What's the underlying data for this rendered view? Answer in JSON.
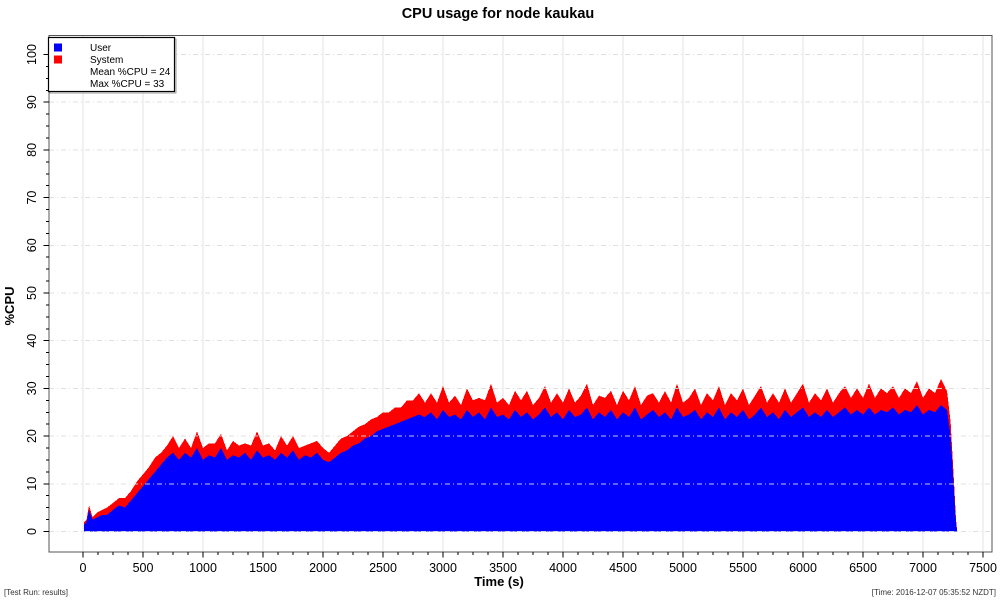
{
  "page": {
    "footer_left": "[Test Run: results]",
    "footer_right": "[Time: 2016-12-07 05:35:52 NZDT]"
  },
  "chart_data": {
    "type": "area",
    "stacked": true,
    "title": "CPU usage for node kaukau",
    "xlabel": "Time (s)",
    "ylabel": "%CPU",
    "xlim": [
      0,
      7500
    ],
    "ylim": [
      0,
      100
    ],
    "x_tick_labels": [
      "0",
      "500",
      "1000",
      "1500",
      "2000",
      "2500",
      "3000",
      "3500",
      "4000",
      "4500",
      "5000",
      "5500",
      "6000",
      "6500",
      "7000",
      "7500"
    ],
    "y_tick_labels": [
      "0",
      "10",
      "20",
      "30",
      "40",
      "50",
      "60",
      "70",
      "80",
      "90",
      "100"
    ],
    "x_minor_step": 125,
    "y_minor_step": 2.5,
    "grid": {
      "vertical_style": "solid",
      "horizontal_style": "dashdot",
      "color": "#dcdcdc",
      "legend_position": "top-left"
    },
    "legend": {
      "user_label": "User",
      "system_label": "System",
      "mean_label": "Mean %CPU = 24",
      "max_label": "Max %CPU = 33"
    },
    "mean_cpu": 24,
    "max_cpu": 33,
    "series": [
      {
        "name": "User",
        "color": "#0000ff"
      },
      {
        "name": "System",
        "color": "#ff0000"
      }
    ],
    "samples_t_user_system": [
      [
        10,
        1.5,
        0.5
      ],
      [
        30,
        2,
        0.5
      ],
      [
        50,
        4.5,
        1
      ],
      [
        80,
        2.5,
        0.5
      ],
      [
        120,
        3,
        1
      ],
      [
        160,
        3.5,
        1
      ],
      [
        200,
        3.5,
        1.5
      ],
      [
        250,
        4.5,
        1.5
      ],
      [
        300,
        5.5,
        1.5
      ],
      [
        350,
        5,
        2
      ],
      [
        400,
        6.5,
        2
      ],
      [
        450,
        8,
        2.5
      ],
      [
        500,
        9.5,
        2.5
      ],
      [
        550,
        11,
        2.5
      ],
      [
        600,
        12.5,
        3
      ],
      [
        650,
        14,
        2.5
      ],
      [
        700,
        15.5,
        2.5
      ],
      [
        750,
        16.5,
        3.5
      ],
      [
        800,
        15,
        2.5
      ],
      [
        850,
        16.5,
        3
      ],
      [
        900,
        15.5,
        2
      ],
      [
        950,
        17.5,
        3.5
      ],
      [
        1000,
        15,
        2.5
      ],
      [
        1050,
        16,
        2.5
      ],
      [
        1100,
        15.5,
        3
      ],
      [
        1150,
        17.5,
        3
      ],
      [
        1200,
        15,
        2
      ],
      [
        1250,
        16,
        3
      ],
      [
        1300,
        15.5,
        2.5
      ],
      [
        1350,
        16.5,
        2
      ],
      [
        1400,
        15,
        3
      ],
      [
        1450,
        17,
        4
      ],
      [
        1500,
        15.5,
        2.5
      ],
      [
        1550,
        16,
        2.5
      ],
      [
        1600,
        15,
        2
      ],
      [
        1650,
        16.5,
        3.5
      ],
      [
        1700,
        15.5,
        2.5
      ],
      [
        1750,
        17,
        3
      ],
      [
        1800,
        15,
        2.5
      ],
      [
        1850,
        16,
        2
      ],
      [
        1900,
        15.5,
        3
      ],
      [
        1950,
        16.5,
        2.5
      ],
      [
        2000,
        15,
        2.5
      ],
      [
        2050,
        14.5,
        2
      ],
      [
        2100,
        15.5,
        2.5
      ],
      [
        2150,
        16.5,
        3
      ],
      [
        2200,
        17,
        3
      ],
      [
        2250,
        18,
        3
      ],
      [
        2300,
        18.5,
        3.5
      ],
      [
        2350,
        19.5,
        3
      ],
      [
        2400,
        20,
        3.5
      ],
      [
        2450,
        21,
        3
      ],
      [
        2500,
        21.5,
        3.5
      ],
      [
        2550,
        22,
        3
      ],
      [
        2600,
        22.5,
        3.5
      ],
      [
        2650,
        23,
        3
      ],
      [
        2700,
        23.5,
        4
      ],
      [
        2750,
        24,
        3.5
      ],
      [
        2800,
        24.5,
        4.5
      ],
      [
        2850,
        24,
        3
      ],
      [
        2900,
        25,
        4
      ],
      [
        2950,
        23.5,
        3.5
      ],
      [
        3000,
        25.5,
        5
      ],
      [
        3050,
        24,
        3
      ],
      [
        3100,
        24.5,
        4
      ],
      [
        3150,
        23.5,
        3
      ],
      [
        3200,
        25.5,
        4.5
      ],
      [
        3250,
        24,
        3.5
      ],
      [
        3300,
        25,
        3
      ],
      [
        3350,
        23.5,
        4
      ],
      [
        3400,
        26,
        5
      ],
      [
        3450,
        24,
        3
      ],
      [
        3500,
        24.5,
        3.5
      ],
      [
        3550,
        23.5,
        3
      ],
      [
        3600,
        25.5,
        4
      ],
      [
        3650,
        24,
        3.5
      ],
      [
        3700,
        25,
        4.5
      ],
      [
        3750,
        23.5,
        3
      ],
      [
        3800,
        24.5,
        3.5
      ],
      [
        3850,
        26,
        4.5
      ],
      [
        3900,
        24,
        3
      ],
      [
        3950,
        25,
        4
      ],
      [
        4000,
        23.5,
        3.5
      ],
      [
        4050,
        25.5,
        4.5
      ],
      [
        4100,
        24,
        3
      ],
      [
        4150,
        24.5,
        4
      ],
      [
        4200,
        26,
        5
      ],
      [
        4250,
        23.5,
        3
      ],
      [
        4300,
        25,
        3.5
      ],
      [
        4350,
        24,
        4
      ],
      [
        4400,
        25.5,
        4
      ],
      [
        4450,
        23.5,
        3
      ],
      [
        4500,
        25,
        4.5
      ],
      [
        4550,
        24,
        3.5
      ],
      [
        4600,
        26,
        4.5
      ],
      [
        4650,
        23.5,
        3
      ],
      [
        4700,
        24.5,
        4
      ],
      [
        4750,
        25.5,
        3.5
      ],
      [
        4800,
        24,
        3
      ],
      [
        4850,
        25,
        4.5
      ],
      [
        4900,
        23.5,
        3.5
      ],
      [
        4950,
        26,
        5
      ],
      [
        5000,
        24,
        3
      ],
      [
        5050,
        24.5,
        3.5
      ],
      [
        5100,
        25.5,
        4.5
      ],
      [
        5150,
        23.5,
        3
      ],
      [
        5200,
        25,
        4
      ],
      [
        5250,
        24,
        3.5
      ],
      [
        5300,
        26,
        4.5
      ],
      [
        5350,
        23.5,
        3
      ],
      [
        5400,
        25,
        4
      ],
      [
        5450,
        24,
        3.5
      ],
      [
        5500,
        25.5,
        4.5
      ],
      [
        5550,
        23.5,
        3
      ],
      [
        5600,
        24.5,
        4
      ],
      [
        5650,
        26,
        4.5
      ],
      [
        5700,
        24,
        3
      ],
      [
        5750,
        25,
        4
      ],
      [
        5800,
        23.5,
        3.5
      ],
      [
        5850,
        25.5,
        4.5
      ],
      [
        5900,
        24,
        3
      ],
      [
        5950,
        25,
        4
      ],
      [
        6000,
        26,
        5
      ],
      [
        6050,
        24,
        3
      ],
      [
        6100,
        25,
        4
      ],
      [
        6150,
        24,
        3.5
      ],
      [
        6200,
        25.5,
        4.5
      ],
      [
        6250,
        24,
        3
      ],
      [
        6300,
        25,
        4
      ],
      [
        6350,
        26,
        4.5
      ],
      [
        6400,
        24.5,
        3.5
      ],
      [
        6450,
        25.5,
        4.5
      ],
      [
        6500,
        24.5,
        3.5
      ],
      [
        6550,
        26,
        5
      ],
      [
        6600,
        24.5,
        3.5
      ],
      [
        6650,
        25.5,
        4.5
      ],
      [
        6700,
        25,
        4
      ],
      [
        6750,
        26,
        4.5
      ],
      [
        6800,
        24.5,
        3.5
      ],
      [
        6850,
        25.5,
        4.5
      ],
      [
        6900,
        25,
        4
      ],
      [
        6950,
        26.5,
        5
      ],
      [
        7000,
        24.5,
        3.5
      ],
      [
        7050,
        25.5,
        4.5
      ],
      [
        7100,
        25,
        4
      ],
      [
        7150,
        26.5,
        5.5
      ],
      [
        7200,
        25.5,
        4
      ],
      [
        7230,
        20,
        3
      ],
      [
        7255,
        10,
        2
      ],
      [
        7275,
        2,
        0.5
      ],
      [
        7285,
        0,
        0
      ]
    ]
  }
}
